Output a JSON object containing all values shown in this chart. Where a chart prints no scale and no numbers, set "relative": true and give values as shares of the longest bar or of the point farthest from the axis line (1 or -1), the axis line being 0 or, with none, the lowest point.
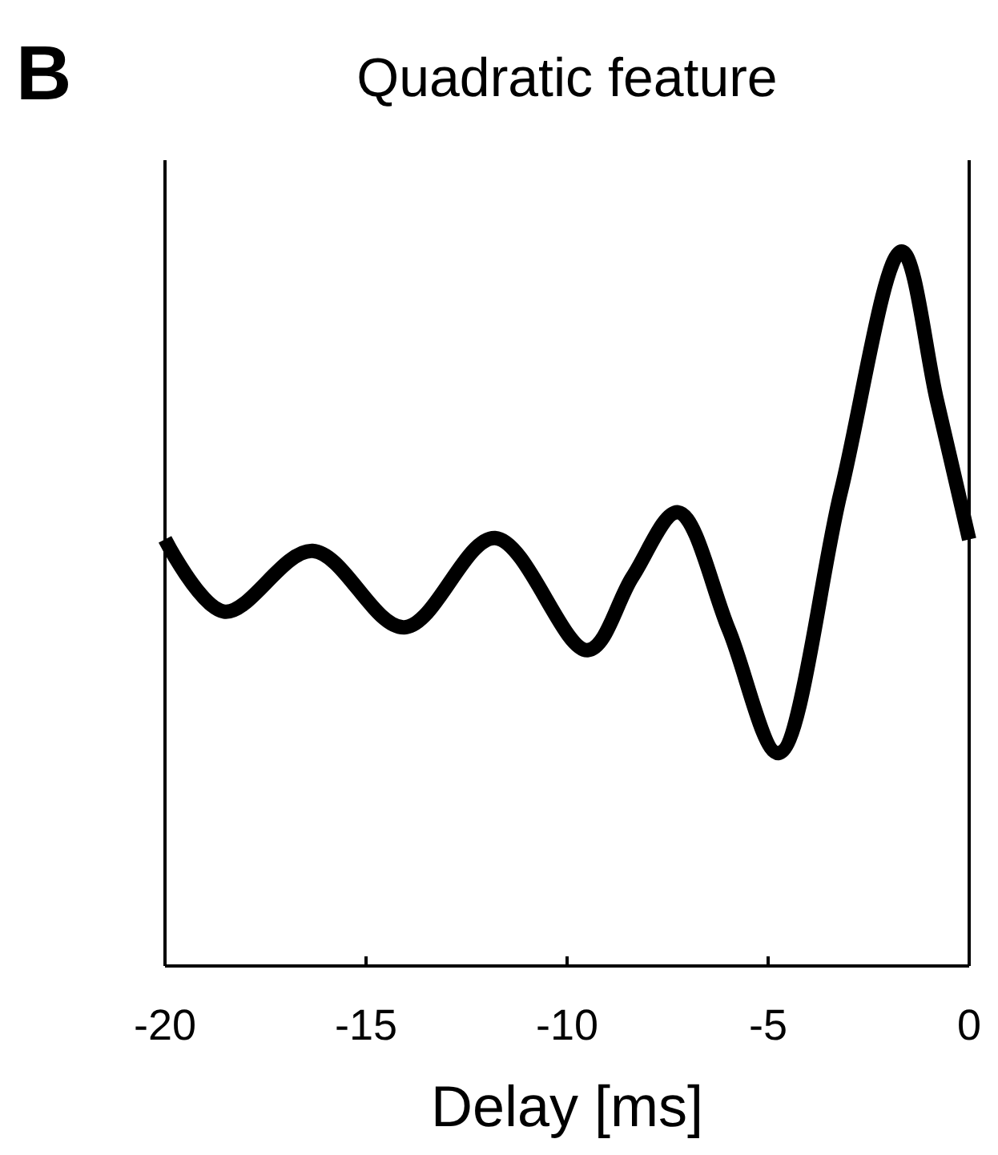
{
  "chart_data": {
    "type": "line",
    "title": "Quadratic feature",
    "xlabel": "Delay [ms]",
    "annotations": [
      "B"
    ],
    "relative": true,
    "x": [
      -20,
      -18.53,
      -16.33,
      -14.05,
      -11.79,
      -9.49,
      -8.37,
      -7.24,
      -5.98,
      -4.74,
      -3.19,
      -1.68,
      -0.8,
      0
    ],
    "series": [
      {
        "color": "#000000",
        "values": [
          0.597,
          0.496,
          0.581,
          0.474,
          0.599,
          0.442,
          0.545,
          0.635,
          0.471,
          0.298,
          0.664,
          1,
          0.791,
          0.597
        ]
      }
    ],
    "xlim": [
      -20,
      0
    ],
    "xticks": [
      -20,
      -15,
      -10,
      -5,
      0
    ],
    "grid": false,
    "marker": "none",
    "line_style": "solid"
  }
}
